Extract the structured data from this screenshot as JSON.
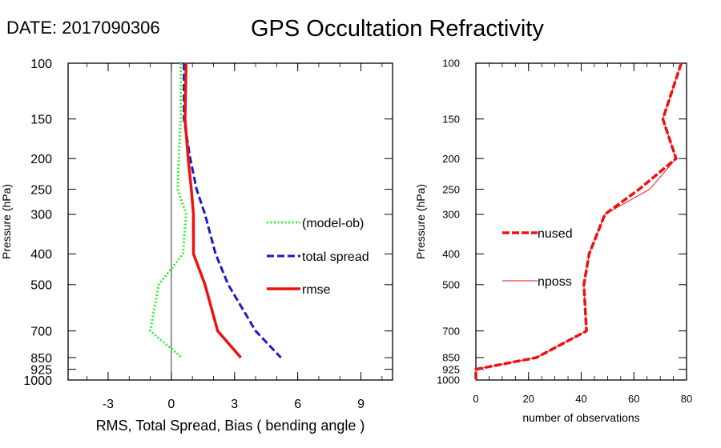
{
  "header": {
    "date_label": "DATE: 2017090306",
    "title": "GPS Occultation Refractivity"
  },
  "chart_data": [
    {
      "type": "line",
      "xlabel": "RMS, Total Spread, Bias ( bending angle )",
      "ylabel": "Pressure (hPa)",
      "xlim": [
        -4.9,
        10.5
      ],
      "ylim": [
        1000,
        100
      ],
      "y_scale": "log",
      "x_ticks": [
        -3,
        0,
        3,
        6,
        9
      ],
      "x_tick_labels": [
        "-3",
        "0",
        "3",
        "6",
        "9"
      ],
      "y_ticks": [
        100,
        150,
        200,
        250,
        300,
        400,
        500,
        700,
        850,
        925,
        1000
      ],
      "y_tick_labels": [
        "100",
        "150",
        "200",
        "250",
        "300",
        "400",
        "500",
        "700",
        "850",
        "925",
        "1000"
      ],
      "zero_line": true,
      "legend_placement": "right",
      "series": [
        {
          "name": "(model-ob)",
          "color": "#33ee33",
          "style": "dotted",
          "points": [
            [
              0.45,
              100
            ],
            [
              0.45,
              150
            ],
            [
              0.35,
              200
            ],
            [
              0.3,
              250
            ],
            [
              0.7,
              300
            ],
            [
              0.55,
              400
            ],
            [
              -0.6,
              500
            ],
            [
              -1.0,
              700
            ],
            [
              0.5,
              850
            ]
          ]
        },
        {
          "name": "total spread",
          "color": "#1a1acc",
          "style": "dashed",
          "points": [
            [
              0.6,
              100
            ],
            [
              0.6,
              150
            ],
            [
              0.9,
              200
            ],
            [
              1.2,
              250
            ],
            [
              1.6,
              300
            ],
            [
              2.1,
              400
            ],
            [
              2.7,
              500
            ],
            [
              4.0,
              700
            ],
            [
              5.2,
              850
            ]
          ]
        },
        {
          "name": "rmse",
          "color": "#ee1111",
          "style": "solid",
          "points": [
            [
              0.7,
              100
            ],
            [
              0.65,
              150
            ],
            [
              0.8,
              200
            ],
            [
              0.95,
              250
            ],
            [
              1.05,
              300
            ],
            [
              1.05,
              400
            ],
            [
              1.6,
              500
            ],
            [
              2.2,
              700
            ],
            [
              3.3,
              850
            ]
          ]
        }
      ]
    },
    {
      "type": "line",
      "xlabel": "number of observations",
      "ylabel": "Pressure (hPa)",
      "xlim": [
        0,
        80
      ],
      "ylim": [
        1000,
        100
      ],
      "y_scale": "log",
      "x_ticks": [
        0,
        20,
        40,
        60,
        80
      ],
      "x_tick_labels": [
        "0",
        "20",
        "40",
        "60",
        "80"
      ],
      "y_ticks": [
        100,
        150,
        200,
        250,
        300,
        400,
        500,
        700,
        850,
        925,
        1000
      ],
      "y_tick_labels": [
        "100",
        "150",
        "200",
        "250",
        "300",
        "400",
        "500",
        "700",
        "850",
        "925",
        "1000"
      ],
      "legend_placement": "left",
      "series": [
        {
          "name": "nused",
          "color": "#ee1111",
          "style": "dashed-thick",
          "points": [
            [
              78,
              100
            ],
            [
              71,
              150
            ],
            [
              76,
              200
            ],
            [
              62,
              250
            ],
            [
              49,
              300
            ],
            [
              43,
              400
            ],
            [
              41,
              500
            ],
            [
              42,
              700
            ],
            [
              23,
              850
            ],
            [
              0,
              925
            ],
            [
              0,
              1000
            ]
          ]
        },
        {
          "name": "nposs",
          "color": "#ee1111",
          "style": "thin",
          "points": [
            [
              78,
              100
            ],
            [
              71,
              150
            ],
            [
              76,
              200
            ],
            [
              66,
              250
            ],
            [
              49,
              300
            ],
            [
              43,
              400
            ],
            [
              41,
              500
            ],
            [
              42,
              700
            ],
            [
              23,
              850
            ],
            [
              0,
              925
            ],
            [
              0,
              1000
            ]
          ]
        }
      ]
    }
  ]
}
